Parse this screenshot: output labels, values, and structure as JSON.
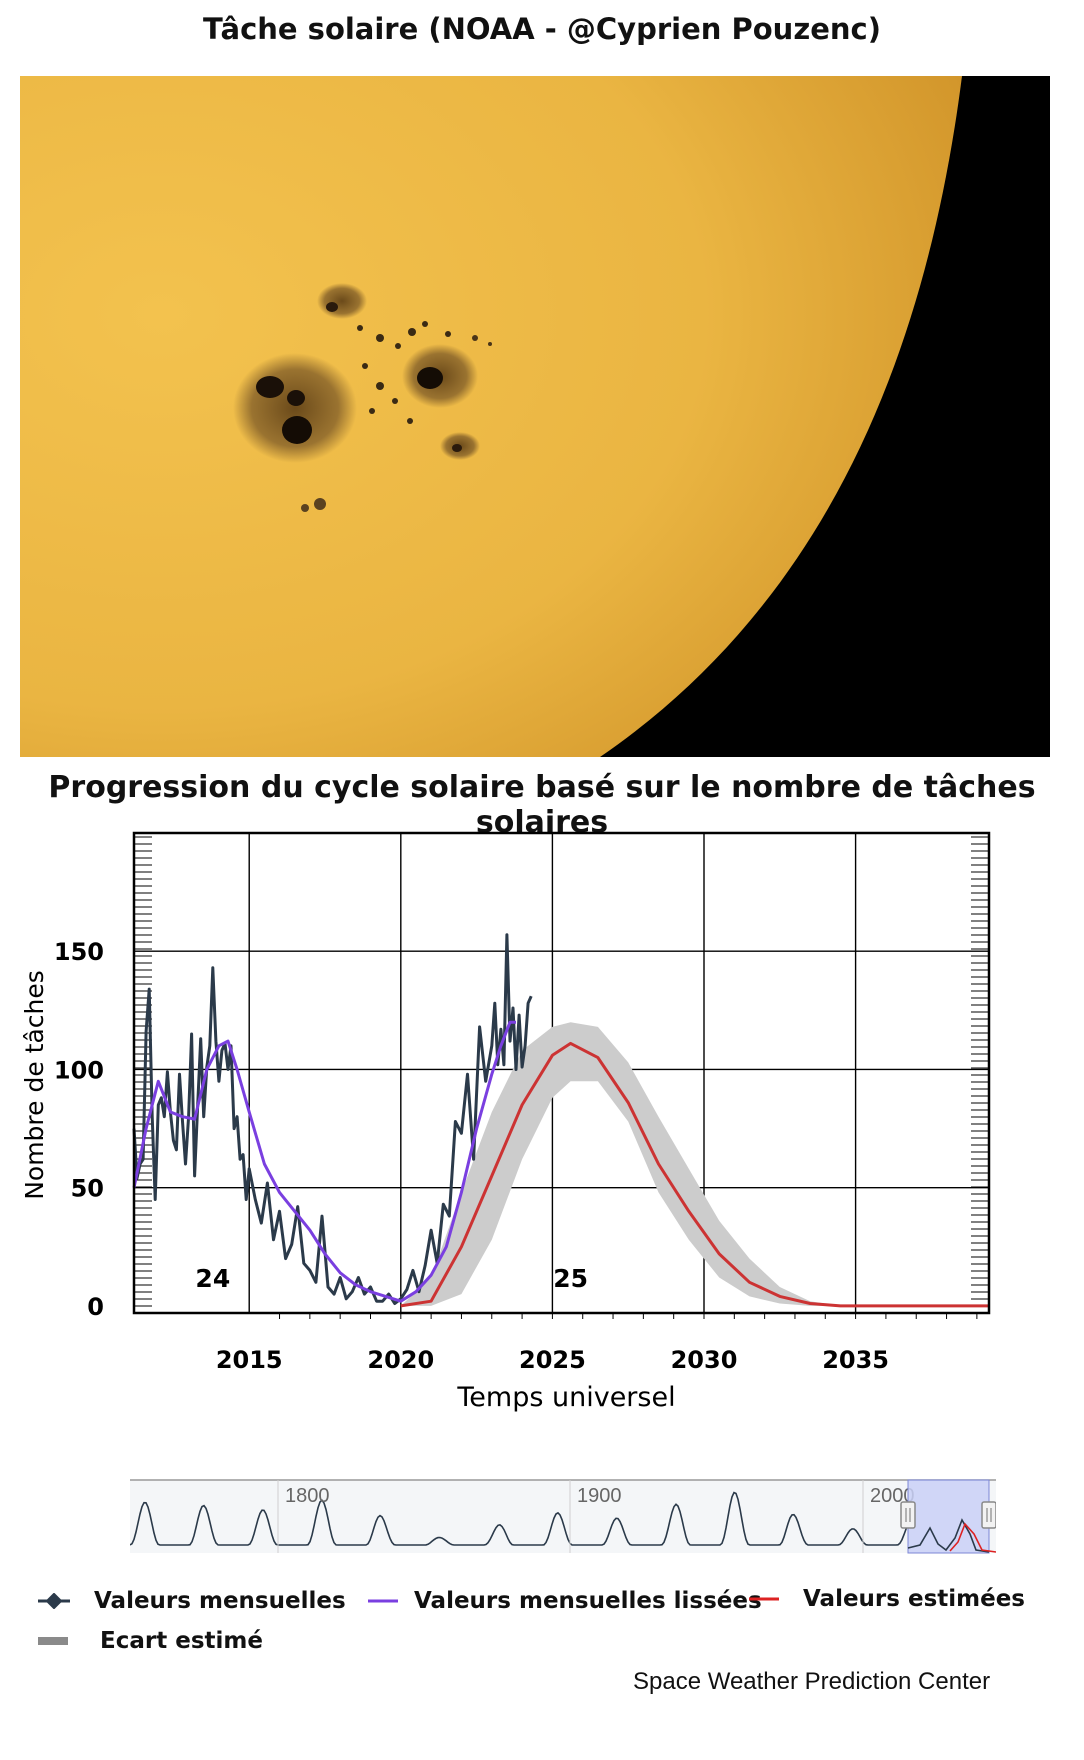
{
  "photo": {
    "title": "Tâche solaire (NOAA - @Cyprien Pouzenc)"
  },
  "chart_title": "Progression du cycle solaire basé sur le nombre de tâches solaires",
  "chart_data": {
    "type": "line",
    "xlabel": "Temps universel",
    "ylabel": "Nombre de tâches",
    "xlim": [
      2011.2,
      2039.4
    ],
    "ylim": [
      -3,
      200
    ],
    "x_ticks": [
      2015,
      2020,
      2025,
      2030,
      2035
    ],
    "y_ticks": [
      0,
      50,
      100,
      150
    ],
    "grid": true,
    "cycle_labels": [
      {
        "text": "24",
        "x": 2013.8,
        "y": 8
      },
      {
        "text": "25",
        "x": 2025.6,
        "y": 8
      }
    ],
    "series": [
      {
        "name": "Valeurs mensuelles",
        "color": "#2b3a4a",
        "x": [
          2011.2,
          2011.3,
          2011.4,
          2011.5,
          2011.6,
          2011.7,
          2011.8,
          2011.9,
          2012.0,
          2012.1,
          2012.2,
          2012.3,
          2012.4,
          2012.5,
          2012.6,
          2012.7,
          2012.8,
          2012.9,
          2013.0,
          2013.1,
          2013.2,
          2013.3,
          2013.4,
          2013.5,
          2013.6,
          2013.7,
          2013.8,
          2013.9,
          2014.0,
          2014.1,
          2014.2,
          2014.3,
          2014.4,
          2014.5,
          2014.6,
          2014.7,
          2014.8,
          2014.9,
          2015.0,
          2015.2,
          2015.4,
          2015.6,
          2015.8,
          2016.0,
          2016.2,
          2016.4,
          2016.6,
          2016.8,
          2017.0,
          2017.2,
          2017.4,
          2017.6,
          2017.8,
          2018.0,
          2018.2,
          2018.4,
          2018.6,
          2018.8,
          2019.0,
          2019.2,
          2019.4,
          2019.6,
          2019.8,
          2020.0,
          2020.2,
          2020.4,
          2020.6,
          2020.8,
          2021.0,
          2021.2,
          2021.4,
          2021.6,
          2021.8,
          2022.0,
          2022.2,
          2022.4,
          2022.6,
          2022.8,
          2023.0,
          2023.1,
          2023.2,
          2023.3,
          2023.4,
          2023.5,
          2023.6,
          2023.7,
          2023.8,
          2023.9,
          2024.0,
          2024.1,
          2024.2,
          2024.3
        ],
        "y": [
          75,
          54,
          60,
          62,
          116,
          134,
          80,
          45,
          85,
          88,
          80,
          99,
          82,
          70,
          66,
          98,
          78,
          60,
          80,
          115,
          55,
          85,
          113,
          80,
          101,
          110,
          143,
          112,
          95,
          108,
          111,
          100,
          110,
          75,
          80,
          62,
          64,
          45,
          58,
          45,
          35,
          52,
          28,
          40,
          20,
          26,
          42,
          18,
          15,
          10,
          38,
          8,
          5,
          12,
          3,
          6,
          12,
          5,
          8,
          2,
          2,
          5,
          1,
          3,
          7,
          15,
          6,
          17,
          32,
          18,
          43,
          38,
          78,
          73,
          98,
          62,
          118,
          95,
          110,
          128,
          102,
          117,
          102,
          157,
          112,
          126,
          100,
          123,
          101,
          110,
          128,
          131
        ]
      },
      {
        "name": "Valeurs mensuelles lissées",
        "color": "#7a3fe0",
        "x": [
          2011.2,
          2011.6,
          2012.0,
          2012.4,
          2012.8,
          2013.2,
          2013.6,
          2014.0,
          2014.3,
          2014.6,
          2015.0,
          2015.5,
          2016.0,
          2016.5,
          2017.0,
          2017.5,
          2018.0,
          2018.5,
          2019.0,
          2019.5,
          2020.0,
          2020.5,
          2021.0,
          2021.5,
          2022.0,
          2022.5,
          2023.0,
          2023.3,
          2023.6,
          2023.8
        ],
        "y": [
          50,
          75,
          95,
          82,
          80,
          79,
          100,
          110,
          112,
          100,
          82,
          60,
          48,
          40,
          32,
          22,
          14,
          9,
          6,
          4,
          2,
          6,
          13,
          25,
          48,
          75,
          98,
          110,
          120,
          120
        ]
      },
      {
        "name": "Valeurs estimées",
        "color": "#cc3333",
        "x": [
          2020.0,
          2021.0,
          2022.0,
          2023.0,
          2024.0,
          2025.0,
          2025.6,
          2026.5,
          2027.5,
          2028.5,
          2029.5,
          2030.5,
          2031.5,
          2032.5,
          2033.5,
          2034.5,
          2035.5,
          2037.0,
          2039.4
        ],
        "y": [
          0,
          2,
          25,
          55,
          85,
          106,
          111,
          105,
          86,
          60,
          40,
          22,
          10,
          4,
          1,
          0,
          0,
          0,
          0
        ]
      }
    ],
    "band": {
      "name": "Ecart estimé",
      "color": "#cccccc",
      "x": [
        2020.0,
        2021.0,
        2022.0,
        2023.0,
        2024.0,
        2025.0,
        2025.6,
        2026.5,
        2027.5,
        2028.5,
        2029.5,
        2030.5,
        2031.5,
        2032.5,
        2033.5,
        2034.5
      ],
      "lower": [
        0,
        0,
        5,
        28,
        62,
        88,
        95,
        95,
        78,
        48,
        28,
        12,
        4,
        1,
        0,
        0
      ],
      "upper": [
        0,
        12,
        48,
        82,
        108,
        118,
        120,
        118,
        103,
        80,
        58,
        36,
        20,
        8,
        2,
        0
      ]
    },
    "navigator": {
      "x_ticks": [
        "1800",
        "1900",
        "2000"
      ]
    }
  },
  "legend": [
    {
      "label": "Valeurs mensuelles",
      "color": "#2b3a4a",
      "icon": "diamond-line-icon"
    },
    {
      "label": "Valeurs mensuelles lissées",
      "color": "#7a3fe0",
      "icon": "line-icon"
    },
    {
      "label": "Valeurs estimées",
      "color": "#dd2222",
      "icon": "line-icon"
    },
    {
      "label": "Ecart estimé",
      "color": "#8a8a8a",
      "icon": "band-icon"
    }
  ],
  "credit": "Space Weather Prediction Center"
}
